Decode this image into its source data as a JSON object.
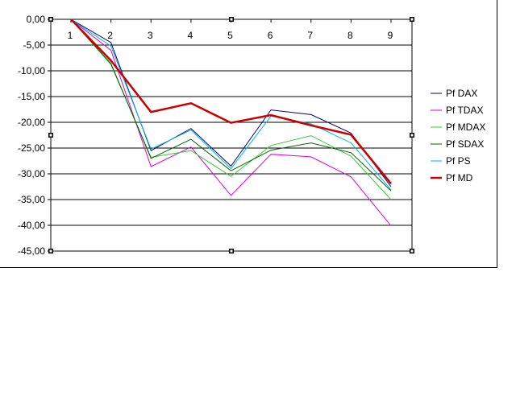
{
  "chart_data": {
    "type": "line",
    "title": "",
    "xlabel": "",
    "ylabel": "",
    "x": [
      1,
      2,
      3,
      4,
      5,
      6,
      7,
      8,
      9
    ],
    "x_tick_labels": [
      "1",
      "2",
      "3",
      "4",
      "5",
      "6",
      "7",
      "8",
      "9"
    ],
    "ylim": [
      -45,
      0
    ],
    "y_ticks": [
      0,
      -5,
      -10,
      -15,
      -20,
      -25,
      -30,
      -35,
      -40,
      -45
    ],
    "y_tick_labels": [
      "0,00",
      "-5,00",
      "-10,00",
      "-15,00",
      "-20,00",
      "-25,00",
      "-30,00",
      "-35,00",
      "-40,00",
      "-45,00"
    ],
    "grid": "horizontal",
    "legend_position": "right",
    "series": [
      {
        "name": "Pf DAX",
        "color": "#000080",
        "width": 1,
        "values": [
          0,
          -4.5,
          -25.5,
          -21.2,
          -28.5,
          -17.6,
          -18.5,
          -22.1,
          -32.5
        ]
      },
      {
        "name": "Pf TDAX",
        "color": "#e000e0",
        "width": 1,
        "values": [
          0,
          -6.0,
          -28.6,
          -24.8,
          -34.2,
          -26.2,
          -26.7,
          -30.6,
          -40.1
        ]
      },
      {
        "name": "Pf MDAX",
        "color": "#33cc33",
        "width": 1,
        "values": [
          0,
          -8.8,
          -26.8,
          -25.5,
          -30.5,
          -24.5,
          -22.6,
          -26.6,
          -35.0
        ]
      },
      {
        "name": "Pf SDAX",
        "color": "#006400",
        "width": 1,
        "values": [
          0,
          -8.6,
          -27.0,
          -23.3,
          -29.4,
          -25.4,
          -24.0,
          -25.9,
          -33.3
        ]
      },
      {
        "name": "Pf PS",
        "color": "#00b8d4",
        "width": 1,
        "values": [
          0,
          -5.2,
          -25.2,
          -21.5,
          -29.0,
          -18.8,
          -20.3,
          -24.0,
          -33.1
        ]
      },
      {
        "name": "Pf MD",
        "color": "#cc0000",
        "width": 2.5,
        "values": [
          0,
          -8.0,
          -18.0,
          -16.3,
          -20.1,
          -18.6,
          -20.6,
          -22.4,
          -31.9
        ]
      }
    ]
  }
}
